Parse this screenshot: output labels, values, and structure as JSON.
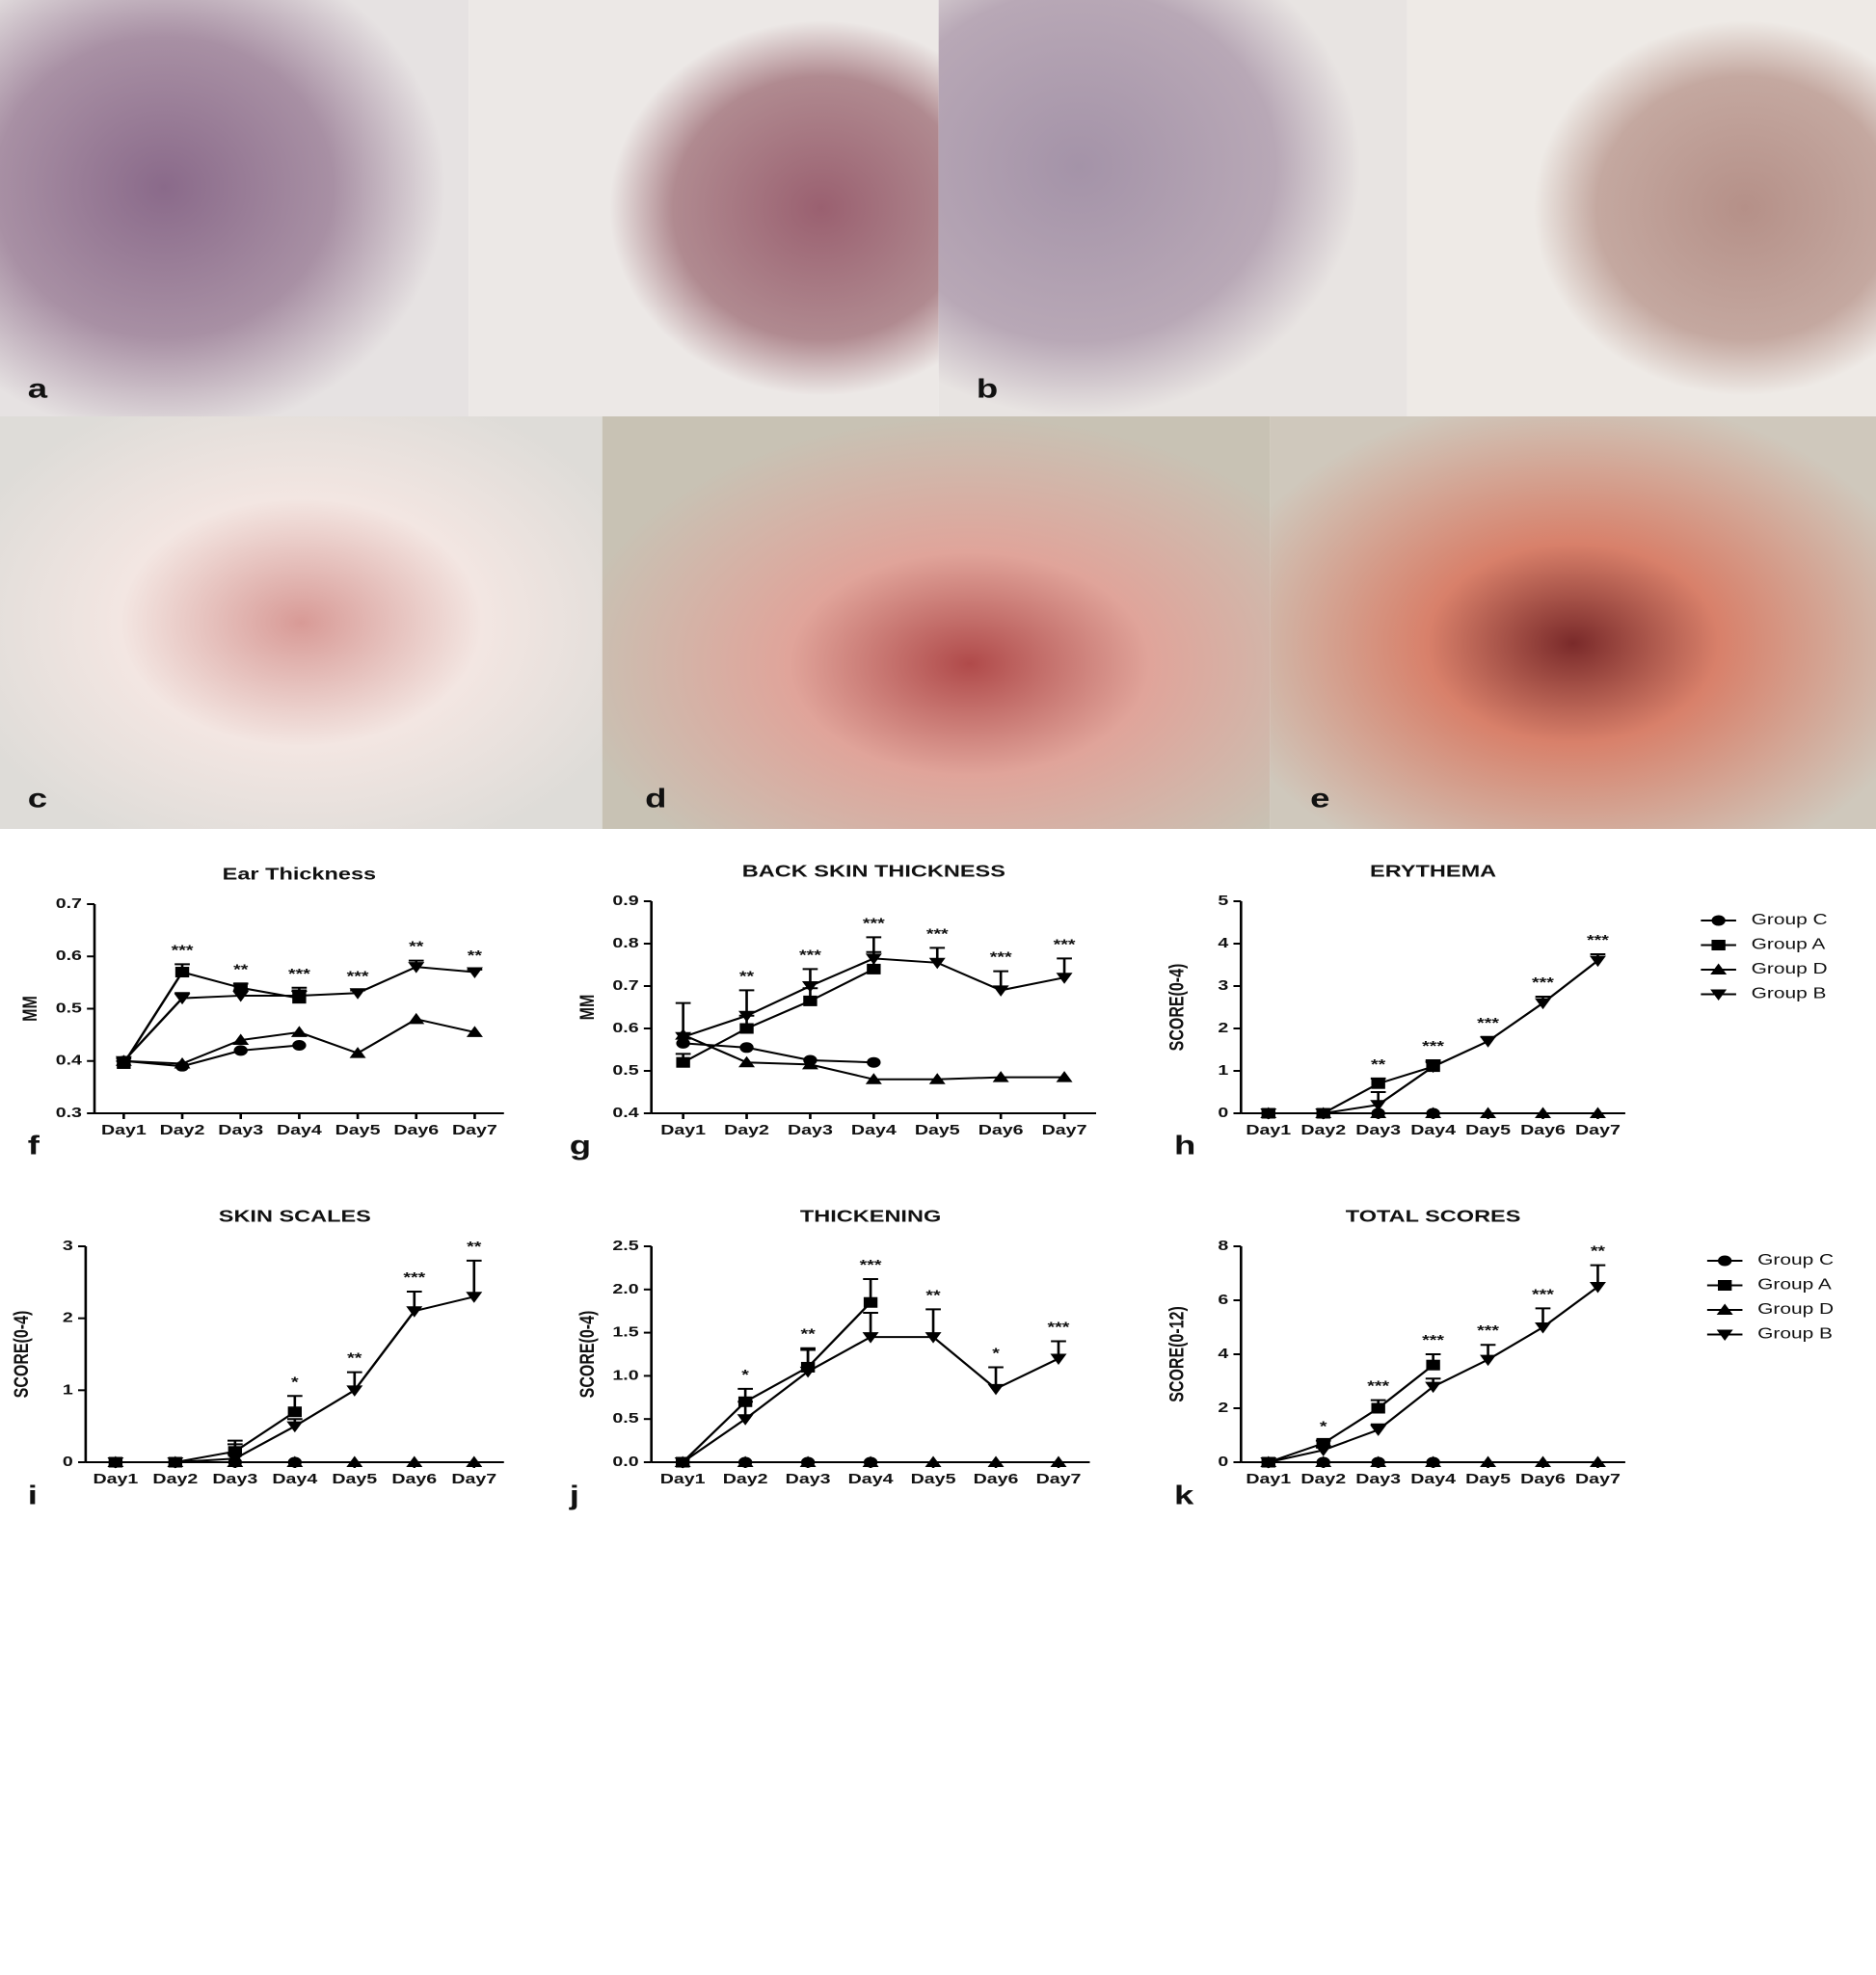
{
  "photos": {
    "labels": [
      "a",
      "b",
      "c",
      "d",
      "e"
    ]
  },
  "chart_data": [
    {
      "type": "line",
      "title": "Ear Thickness",
      "ylabel": "MM",
      "panel": "f",
      "categories": [
        "Day1",
        "Day2",
        "Day3",
        "Day4",
        "Day5",
        "Day6",
        "Day7"
      ],
      "ylim": [
        0.3,
        0.7
      ],
      "yticks": [
        0.3,
        0.4,
        0.5,
        0.6,
        0.7
      ],
      "annotations": [
        null,
        "***",
        "**",
        "***",
        "***",
        "**",
        "**"
      ],
      "series": [
        {
          "name": "Group C",
          "color": "#000000",
          "marker": "circle",
          "values": [
            0.4,
            0.39,
            0.42,
            0.43,
            null,
            null,
            null
          ]
        },
        {
          "name": "Group A",
          "color": "#000000",
          "marker": "square",
          "values": [
            0.395,
            0.57,
            0.54,
            0.52,
            null,
            null,
            null
          ],
          "errors": [
            0.005,
            0.015,
            0.008,
            0.015,
            null,
            null,
            null
          ]
        },
        {
          "name": "Group D",
          "color": "#000000",
          "marker": "triangle-up",
          "values": [
            0.4,
            0.395,
            0.44,
            0.455,
            0.415,
            0.48,
            0.455
          ]
        },
        {
          "name": "Group B",
          "color": "#000000",
          "marker": "triangle-down",
          "values": [
            0.4,
            0.52,
            0.525,
            0.525,
            0.53,
            0.58,
            0.57
          ],
          "errors": [
            0.005,
            0.01,
            0.01,
            0.015,
            0.005,
            0.012,
            0.005
          ]
        }
      ]
    },
    {
      "type": "line",
      "title": "BACK SKIN THICKNESS",
      "ylabel": "MM",
      "panel": "g",
      "categories": [
        "Day1",
        "Day2",
        "Day3",
        "Day4",
        "Day5",
        "Day6",
        "Day7"
      ],
      "ylim": [
        0.4,
        0.9
      ],
      "yticks": [
        0.4,
        0.5,
        0.6,
        0.7,
        0.8,
        0.9
      ],
      "annotations": [
        null,
        "**",
        "***",
        "***",
        "***",
        "***",
        "***"
      ],
      "series": [
        {
          "name": "Group C",
          "color": "#000000",
          "marker": "circle",
          "values": [
            0.565,
            0.555,
            0.525,
            0.52,
            null,
            null,
            null
          ]
        },
        {
          "name": "Group A",
          "color": "#000000",
          "marker": "square",
          "values": [
            0.52,
            0.6,
            0.665,
            0.74,
            null,
            null,
            null
          ],
          "errors": [
            0.02,
            0.03,
            0.03,
            0.04,
            null,
            null,
            null
          ]
        },
        {
          "name": "Group D",
          "color": "#000000",
          "marker": "triangle-up",
          "values": [
            0.585,
            0.52,
            0.515,
            0.48,
            0.48,
            0.485,
            0.485
          ]
        },
        {
          "name": "Group B",
          "color": "#000000",
          "marker": "triangle-down",
          "values": [
            0.58,
            0.63,
            0.7,
            0.765,
            0.755,
            0.69,
            0.72
          ],
          "errors": [
            0.08,
            0.06,
            0.04,
            0.05,
            0.035,
            0.045,
            0.045
          ]
        }
      ]
    },
    {
      "type": "line",
      "title": "ERYTHEMA",
      "ylabel": "SCORE(0-4)",
      "panel": "h",
      "legend": "right",
      "categories": [
        "Day1",
        "Day2",
        "Day3",
        "Day4",
        "Day5",
        "Day6",
        "Day7"
      ],
      "ylim": [
        0,
        5
      ],
      "yticks": [
        0,
        1,
        2,
        3,
        4,
        5
      ],
      "annotations": [
        null,
        null,
        "**",
        "***",
        "***",
        "***",
        "***"
      ],
      "series": [
        {
          "name": "Group C",
          "color": "#000000",
          "marker": "circle",
          "values": [
            0,
            0,
            0,
            0,
            null,
            null,
            null
          ]
        },
        {
          "name": "Group A",
          "color": "#000000",
          "marker": "square",
          "values": [
            0,
            0,
            0.7,
            1.1,
            null,
            null,
            null
          ],
          "errors": [
            null,
            null,
            0.12,
            0.12,
            null,
            null,
            null
          ]
        },
        {
          "name": "Group D",
          "color": "#000000",
          "marker": "triangle-up",
          "values": [
            0,
            0,
            0,
            0,
            0,
            0,
            0
          ]
        },
        {
          "name": "Group B",
          "color": "#000000",
          "marker": "triangle-down",
          "values": [
            0,
            0,
            0.2,
            1.1,
            1.7,
            2.6,
            3.6
          ],
          "errors": [
            null,
            null,
            0.3,
            0.15,
            0.1,
            0.15,
            0.15
          ]
        }
      ]
    },
    {
      "type": "line",
      "title": "SKIN SCALES",
      "ylabel": "SCORE(0-4)",
      "panel": "i",
      "categories": [
        "Day1",
        "Day2",
        "Day3",
        "Day4",
        "Day5",
        "Day6",
        "Day7"
      ],
      "ylim": [
        0,
        3
      ],
      "yticks": [
        0,
        1,
        2,
        3
      ],
      "annotations": [
        null,
        null,
        null,
        "*",
        "**",
        "***",
        "**"
      ],
      "series": [
        {
          "name": "Group C",
          "color": "#000000",
          "marker": "circle",
          "values": [
            0,
            0,
            0,
            0,
            null,
            null,
            null
          ]
        },
        {
          "name": "Group A",
          "color": "#000000",
          "marker": "square",
          "values": [
            0,
            0,
            0.15,
            0.7,
            null,
            null,
            null
          ],
          "errors": [
            null,
            null,
            0.1,
            0.22,
            null,
            null,
            null
          ]
        },
        {
          "name": "Group D",
          "color": "#000000",
          "marker": "triangle-up",
          "values": [
            0,
            0,
            0,
            0,
            0,
            0,
            0
          ]
        },
        {
          "name": "Group B",
          "color": "#000000",
          "marker": "triangle-down",
          "values": [
            0,
            0,
            0.05,
            0.5,
            1.0,
            2.1,
            2.3
          ],
          "errors": [
            null,
            null,
            0.25,
            0.1,
            0.25,
            0.27,
            0.5
          ]
        }
      ]
    },
    {
      "type": "line",
      "title": "THICKENING",
      "ylabel": "SCORE(0-4)",
      "panel": "j",
      "categories": [
        "Day1",
        "Day2",
        "Day3",
        "Day4",
        "Day5",
        "Day6",
        "Day7"
      ],
      "ylim": [
        0,
        2.5
      ],
      "yticks": [
        {
          "value": 0,
          "label": "0.0"
        },
        0.5,
        {
          "value": 1,
          "label": "1.0"
        },
        1.5,
        {
          "value": 2,
          "label": "2.0"
        },
        2.5
      ],
      "annotations": [
        null,
        "*",
        "**",
        "***",
        "**",
        "*",
        "***"
      ],
      "series": [
        {
          "name": "Group C",
          "color": "#000000",
          "marker": "circle",
          "values": [
            0,
            0,
            0,
            0,
            null,
            null,
            null
          ]
        },
        {
          "name": "Group A",
          "color": "#000000",
          "marker": "square",
          "values": [
            0,
            0.7,
            1.1,
            1.85,
            null,
            null,
            null
          ],
          "errors": [
            null,
            0.15,
            0.22,
            0.27,
            null,
            null,
            null
          ]
        },
        {
          "name": "Group D",
          "color": "#000000",
          "marker": "triangle-up",
          "values": [
            0,
            0,
            0,
            0,
            0,
            0,
            0
          ]
        },
        {
          "name": "Group B",
          "color": "#000000",
          "marker": "triangle-down",
          "values": [
            0,
            0.5,
            1.05,
            1.45,
            1.45,
            0.85,
            1.2
          ],
          "errors": [
            null,
            0.2,
            0.25,
            0.28,
            0.32,
            0.25,
            0.2
          ]
        }
      ]
    },
    {
      "type": "line",
      "title": "TOTAL SCORES",
      "ylabel": "SCORE(0-12)",
      "panel": "k",
      "legend": "right",
      "categories": [
        "Day1",
        "Day2",
        "Day3",
        "Day4",
        "Day5",
        "Day6",
        "Day7"
      ],
      "ylim": [
        0,
        8
      ],
      "yticks": [
        0,
        2,
        4,
        6,
        8
      ],
      "annotations": [
        null,
        "*",
        "***",
        "***",
        "***",
        "***",
        "**"
      ],
      "series": [
        {
          "name": "Group C",
          "color": "#000000",
          "marker": "circle",
          "values": [
            0,
            0,
            0,
            0,
            null,
            null,
            null
          ]
        },
        {
          "name": "Group A",
          "color": "#000000",
          "marker": "square",
          "values": [
            0,
            0.7,
            2.0,
            3.6,
            null,
            null,
            null
          ],
          "errors": [
            null,
            0.1,
            0.3,
            0.4,
            null,
            null,
            null
          ]
        },
        {
          "name": "Group D",
          "color": "#000000",
          "marker": "triangle-up",
          "values": [
            0,
            0,
            0,
            0,
            0,
            0,
            0
          ]
        },
        {
          "name": "Group B",
          "color": "#000000",
          "marker": "triangle-down",
          "values": [
            0,
            0.45,
            1.2,
            2.8,
            3.8,
            5.0,
            6.5
          ],
          "errors": [
            null,
            0.1,
            0.2,
            0.3,
            0.55,
            0.7,
            0.8
          ]
        }
      ]
    }
  ]
}
